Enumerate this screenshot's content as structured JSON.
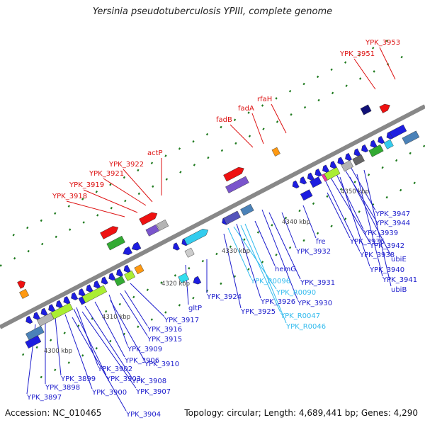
{
  "title": "Yersinia pseudotuberculosis YPIII, complete genome",
  "footer": {
    "accession": "Accession: NC_010465",
    "topology": "Topology: circular; Length: 4,689,441 bp; Genes: 4,290"
  },
  "colors": {
    "background": "#ffffff",
    "backbone": "#888888",
    "tick": "#1e7a1e",
    "label_blue": "#1c1ccc",
    "label_cyan": "#33bbee",
    "label_red": "#dd1111",
    "kbp_text": "#444444"
  },
  "kbp_labels": [
    "4300 kbp",
    "4310 kbp",
    "4320 kbp",
    "4330 kbp",
    "4340 kbp",
    "4350 kbp"
  ],
  "labels_red": [
    "YPK_3953",
    "YPK_3951",
    "rfaH",
    "fadA",
    "fadB",
    "actP",
    "YPK_3922",
    "YPK_3921",
    "YPK_3919",
    "YPK_3918"
  ],
  "labels_blue": [
    "YPK_3947",
    "YPK_3944",
    "YPK_3939",
    "YPK_3942",
    "YPK_3938",
    "ubiE",
    "YPK_3940",
    "YPK_3941",
    "ubiB",
    "fre",
    "YPK_3936",
    "YPK_3932",
    "hemG",
    "YPK_3931",
    "YPK_3930",
    "YPK_3926",
    "YPK_3924",
    "YPK_3925",
    "gltP",
    "YPK_3917",
    "YPK_3916",
    "YPK_3915",
    "YPK_3909",
    "YPK_3910",
    "YPK_3906",
    "YPK_3908",
    "YPK_3902",
    "YPK_3903",
    "YPK_3907",
    "YPK_3899",
    "YPK_3900",
    "YPK_3898",
    "YPK_3897",
    "YPK_3904"
  ],
  "labels_cyan": [
    "YPK_R0096",
    "YPK_R0090",
    "YPK_R0047",
    "YPK_R0046"
  ]
}
